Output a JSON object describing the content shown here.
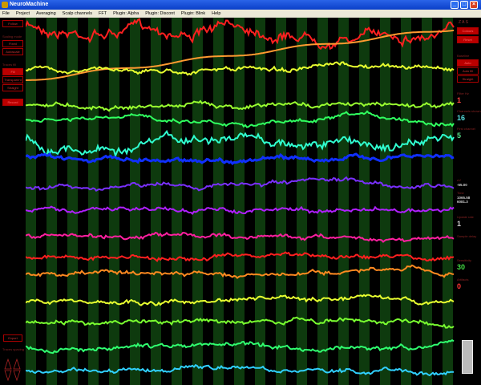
{
  "window": {
    "title": "NeuroMachine"
  },
  "menu": [
    "File",
    "Project",
    "Averaging",
    "Scalp channels",
    "FFT",
    "Plugin: Alpha",
    "Plugin: Discont",
    "Plugin: Blink",
    "Help"
  ],
  "left": {
    "follow": "Follow",
    "section1": "Scaling mode",
    "fixed": "Fixed",
    "auto": "Autoscale",
    "section2": "Traces fill",
    "fill_on": "Fill",
    "fill_off": "Transparent",
    "straight": "Straight",
    "record": "Record",
    "bottom_button": "Export",
    "section3": "Traces spacing"
  },
  "right": {
    "zas": "Z A S",
    "b1": "Colours",
    "b2": "Reset",
    "section1": "Baseline",
    "b3": "Auto",
    "b4": "Auto fill",
    "b5": "Straight",
    "fields": [
      {
        "label": "Filter Hz",
        "value": "1",
        "color": "#ff4444"
      },
      {
        "label": "Channels shown",
        "value": "16",
        "color": "#55dddd"
      },
      {
        "label": "First channel",
        "value": "5",
        "color": "#55dd88"
      },
      {
        "label": "uV",
        "value": "-55.00",
        "color": "#cccccc"
      },
      {
        "label": "Time",
        "value": "1065.58\n6081.3",
        "color": "#cccccc"
      },
      {
        "label": "Update rate",
        "value": "1",
        "color": "#cccccc"
      },
      {
        "label": "Sample delay",
        "value": "",
        "color": "#cccccc"
      },
      {
        "label": "Sensitivity",
        "value": "30",
        "color": "#44dd44"
      },
      {
        "label": "Artifacts",
        "value": "0",
        "color": "#ff3333"
      }
    ]
  },
  "traces": {
    "colors": [
      "#ff2020",
      "#ff9a30",
      "#e8ff30",
      "#9aff30",
      "#30ff60",
      "#30ffd0",
      "#1030ff",
      "#7a30ff",
      "#b020ff",
      "#ff20a0",
      "#ff2020",
      "#ff8a20",
      "#e8ff30",
      "#7aff30",
      "#30ff70",
      "#30d0ff"
    ]
  },
  "colors": {
    "stripe": "#0e3a0e",
    "background": "#000000",
    "panel_text": "#cc2222"
  }
}
